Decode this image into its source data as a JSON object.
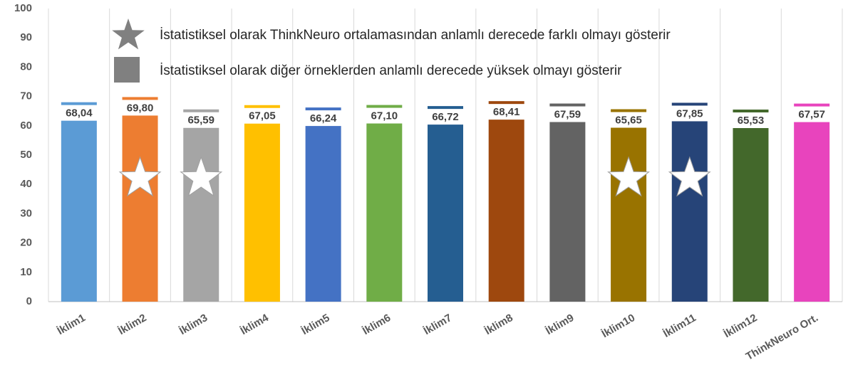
{
  "chart_data": {
    "type": "bar",
    "categories": [
      "İklim1",
      "İklim2",
      "İklim3",
      "İklim4",
      "İklim5",
      "İklim6",
      "İklim7",
      "İklim8",
      "İklim9",
      "İklim10",
      "İklim11",
      "İklim12",
      "ThinkNeuro Ort."
    ],
    "values": [
      68.04,
      69.8,
      65.59,
      67.05,
      66.24,
      67.1,
      66.72,
      68.41,
      67.59,
      65.65,
      67.85,
      65.53,
      67.57
    ],
    "value_labels": [
      "68,04",
      "69,80",
      "65,59",
      "67,05",
      "66,24",
      "67,10",
      "66,72",
      "68,41",
      "67,59",
      "65,65",
      "67,85",
      "65,53",
      "67,57"
    ],
    "colors": [
      "#5b9bd5",
      "#ed7d31",
      "#a5a5a5",
      "#ffc000",
      "#4472c4",
      "#70ad47",
      "#255e91",
      "#9e480e",
      "#636363",
      "#997300",
      "#264478",
      "#43682b",
      "#e844bd"
    ],
    "significant": [
      false,
      true,
      true,
      false,
      false,
      false,
      false,
      false,
      false,
      true,
      true,
      false,
      false
    ],
    "legend": [
      {
        "symbol": "star",
        "color": "#808080",
        "label": "İstatistiksel olarak ThinkNeuro ortalamasından anlamlı derecede farklı olmayı gösterir"
      },
      {
        "symbol": "square",
        "color": "#808080",
        "label": "İstatistiksel olarak diğer örneklerden anlamlı derecede yüksek olmayı gösterir"
      }
    ],
    "ylim": [
      0,
      100
    ],
    "yticks": [
      0,
      10,
      20,
      30,
      40,
      50,
      60,
      70,
      80,
      90,
      100
    ]
  }
}
